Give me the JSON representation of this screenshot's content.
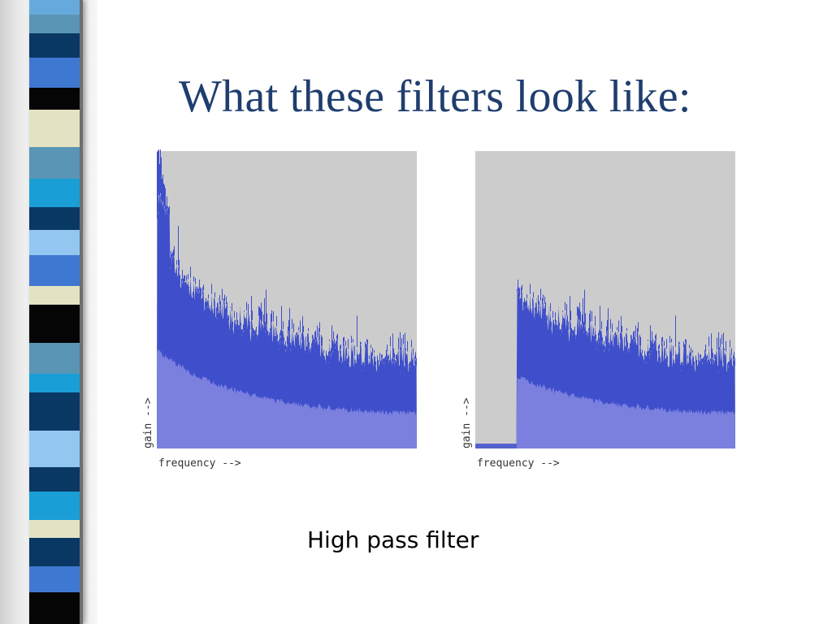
{
  "slide": {
    "title": "What these filters look like:",
    "caption": "High pass filter"
  },
  "colors": {
    "title": "#1f3e6e",
    "plot_background": "#cccccc",
    "fill_light": "#7b80df",
    "fill_dark": "#3f4fcb",
    "baseline": "#5560cf"
  },
  "stripes": [
    {
      "color": "#66aadd",
      "weight": 18
    },
    {
      "color": "#5a95b5",
      "weight": 24
    },
    {
      "color": "#0a3865",
      "weight": 30
    },
    {
      "color": "#3f78d0",
      "weight": 38
    },
    {
      "color": "#050505",
      "weight": 28
    },
    {
      "color": "#e3e3c3",
      "weight": 46
    },
    {
      "color": "#5a95b5",
      "weight": 40
    },
    {
      "color": "#1a9ed6",
      "weight": 36
    },
    {
      "color": "#0a3865",
      "weight": 28
    },
    {
      "color": "#93c7f2",
      "weight": 32
    },
    {
      "color": "#3f78d0",
      "weight": 38
    },
    {
      "color": "#e3e3c3",
      "weight": 24
    },
    {
      "color": "#050505",
      "weight": 48
    },
    {
      "color": "#5a95b5",
      "weight": 38
    },
    {
      "color": "#1a9ed6",
      "weight": 24
    },
    {
      "color": "#0a3865",
      "weight": 48
    },
    {
      "color": "#93c7f2",
      "weight": 46
    },
    {
      "color": "#0a3865",
      "weight": 30
    },
    {
      "color": "#1a9ed6",
      "weight": 36
    },
    {
      "color": "#e3e3c3",
      "weight": 22
    },
    {
      "color": "#0a3865",
      "weight": 36
    },
    {
      "color": "#3f78d0",
      "weight": 32
    },
    {
      "color": "#050505",
      "weight": 40
    }
  ],
  "plots": [
    {
      "id": "original",
      "xlabel": "frequency -->",
      "ylabel": "gain -->",
      "cutoff": 0
    },
    {
      "id": "high-pass",
      "xlabel": "frequency -->",
      "ylabel": "gain -->",
      "cutoff": 0.16
    }
  ]
}
